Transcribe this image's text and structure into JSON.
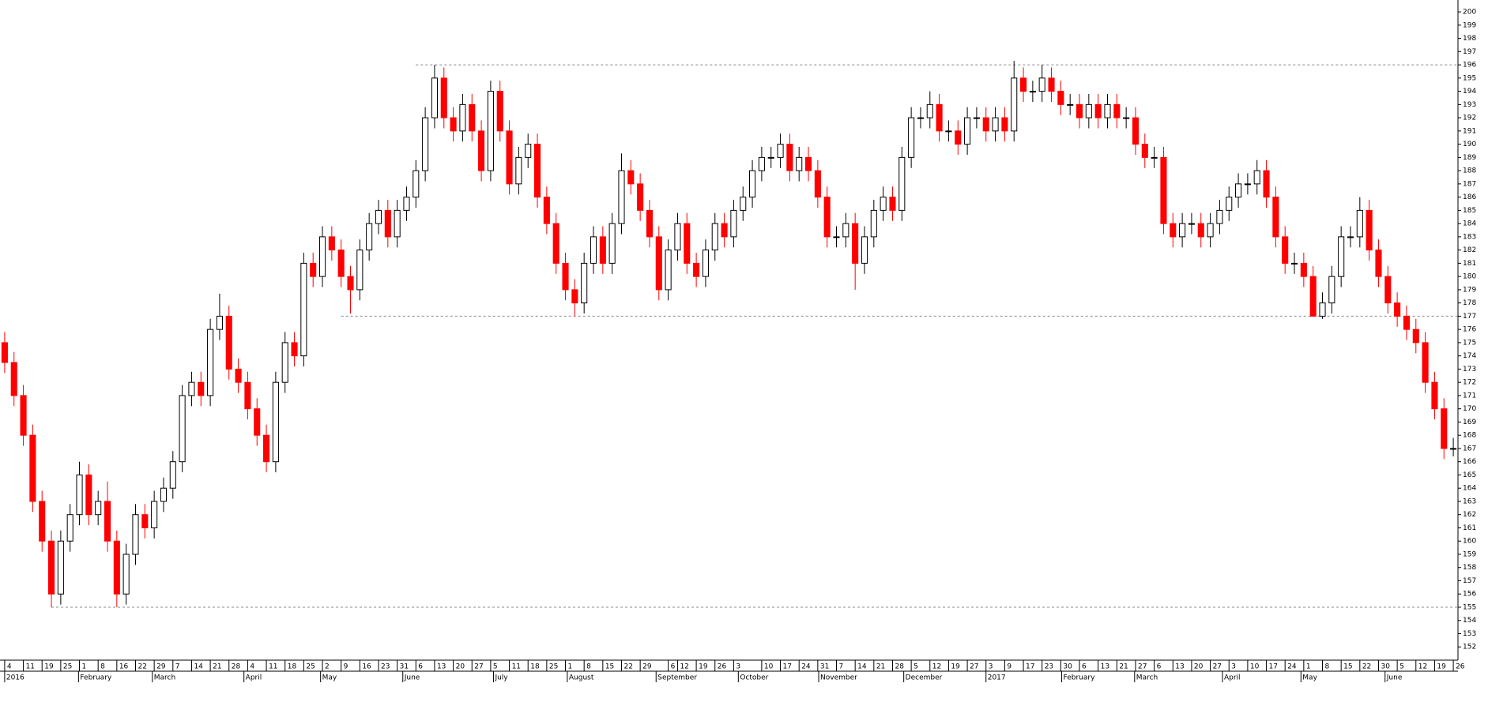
{
  "chart_data": {
    "type": "candlestick",
    "up_color": "#ffffff",
    "down_color": "#ff0000",
    "outline_color": "#000000",
    "ylim": [
      151,
      200.9
    ],
    "xlim": [
      -0.5,
      155.5
    ],
    "yticks": [
      152,
      153,
      154,
      155,
      156,
      157,
      158,
      159,
      160,
      161,
      162,
      163,
      164,
      165,
      166,
      167,
      168,
      169,
      170,
      171,
      172,
      173,
      174,
      175,
      176,
      177,
      178,
      179,
      180,
      181,
      182,
      183,
      184,
      185,
      186,
      187,
      188,
      189,
      190,
      191,
      192,
      193,
      194,
      195,
      196,
      197,
      198,
      199,
      200
    ],
    "open": [
      175,
      173.5,
      171,
      168,
      163,
      160,
      156,
      160,
      162,
      165,
      162,
      163,
      160,
      156,
      159,
      162,
      161,
      163,
      164,
      166,
      171,
      172,
      171,
      176,
      177,
      173,
      172,
      170,
      168,
      166,
      172,
      175,
      174,
      181,
      180,
      183,
      182,
      180,
      179,
      182,
      184,
      185,
      183,
      185,
      186,
      188,
      192,
      195,
      192,
      191,
      193,
      191,
      188,
      194,
      191,
      187,
      189,
      190,
      186,
      184,
      181,
      179,
      178,
      181,
      183,
      181,
      184,
      188,
      187,
      185,
      183,
      179,
      182,
      184,
      181,
      180,
      182,
      184,
      183,
      185,
      186,
      188,
      189,
      189,
      190,
      188,
      189,
      188,
      186,
      183,
      183,
      184,
      181,
      183,
      185,
      186,
      185,
      189,
      192,
      192,
      193,
      191,
      191,
      190,
      192,
      192,
      191,
      192,
      191,
      195,
      194,
      194,
      195,
      194,
      193,
      193,
      192,
      193,
      192,
      193,
      192,
      192,
      190,
      189,
      189,
      184,
      183,
      184,
      184,
      183,
      184,
      185,
      186,
      187,
      187,
      188,
      186,
      183,
      181,
      181,
      180,
      177,
      178,
      180,
      183,
      183,
      185,
      182,
      180,
      178,
      177,
      176,
      175,
      172,
      170,
      167
    ],
    "high": [
      175.8,
      174.3,
      171.8,
      168.8,
      163.8,
      160.8,
      160.8,
      162.8,
      166,
      165.8,
      163.8,
      164.5,
      160.8,
      159.8,
      162.8,
      162.8,
      163.8,
      164.8,
      166.8,
      171.8,
      172.8,
      172.8,
      176.8,
      178.7,
      177.8,
      173.8,
      172.8,
      170.8,
      168.8,
      172.8,
      175.8,
      175.8,
      181.8,
      181.8,
      183.8,
      183.8,
      182.8,
      180.8,
      182.8,
      184.8,
      185.8,
      185.8,
      185.8,
      186.8,
      188.8,
      192.8,
      196,
      195.8,
      192.8,
      193.8,
      193.8,
      191.8,
      194.8,
      194.8,
      191.8,
      189.8,
      190.8,
      190.8,
      186.8,
      184.8,
      181.8,
      179.8,
      181.8,
      183.8,
      183.8,
      184.8,
      189.3,
      188.8,
      187.8,
      185.8,
      183.8,
      182.8,
      184.8,
      184.8,
      181.8,
      182.8,
      184.8,
      184.8,
      185.8,
      186.8,
      188.8,
      189.8,
      189.8,
      190.8,
      190.8,
      189.8,
      189.8,
      188.8,
      186.8,
      183.8,
      184.8,
      184.8,
      183.8,
      185.8,
      186.8,
      186.8,
      189.8,
      192.8,
      192.8,
      194,
      193.8,
      191.8,
      191.8,
      192.8,
      192.8,
      192.8,
      192.8,
      192.8,
      196.3,
      195.8,
      194.8,
      196,
      195.8,
      194.8,
      193.8,
      193.8,
      193.8,
      193.8,
      193.8,
      193.8,
      192.8,
      192.8,
      190.8,
      189.8,
      189.8,
      184.8,
      184.8,
      184.8,
      184.8,
      184.8,
      185.8,
      186.8,
      187.8,
      187.8,
      188.8,
      188.8,
      186.8,
      183.8,
      181.8,
      181.8,
      180.8,
      178.8,
      180.8,
      183.8,
      183.8,
      186,
      185.8,
      182.8,
      180.8,
      178.8,
      177.8,
      176.8,
      175.8,
      172.8,
      170.8,
      167.8
    ],
    "low": [
      172.7,
      170.2,
      167.2,
      162.2,
      159.2,
      155,
      155.2,
      159.2,
      161.2,
      161.2,
      161.2,
      159.2,
      155,
      155.2,
      158.2,
      160.2,
      160.2,
      162.2,
      163.2,
      165.2,
      170.2,
      170.2,
      170.2,
      175.2,
      172.2,
      171.2,
      169.2,
      167.2,
      165.2,
      165.2,
      171.2,
      173.2,
      173.2,
      179.2,
      179.2,
      181.2,
      179.2,
      177.2,
      178.2,
      181.2,
      183.2,
      182.2,
      182.2,
      184.2,
      185.2,
      187.2,
      191.2,
      191.2,
      190.2,
      190.2,
      190.2,
      187.2,
      187.2,
      190.2,
      186.2,
      186.2,
      188.2,
      185.2,
      183.2,
      180.2,
      178.2,
      177,
      177.2,
      180.2,
      180.2,
      180.2,
      183.2,
      186.2,
      184.2,
      182.2,
      178.2,
      178.2,
      181.2,
      180.2,
      179.2,
      179.2,
      181.2,
      182.2,
      182.2,
      184.2,
      185.2,
      187.2,
      188.2,
      188.2,
      187.2,
      187.2,
      187.2,
      185.2,
      182.2,
      182.2,
      182.2,
      179,
      180.2,
      182.2,
      184.2,
      184.2,
      184.2,
      188.2,
      191.2,
      191.2,
      190.2,
      190.2,
      189.2,
      189.2,
      191.2,
      190.2,
      190.2,
      190.2,
      190.2,
      193.2,
      193.2,
      193.2,
      193.2,
      192.2,
      192.2,
      191.2,
      191.2,
      191.2,
      191.2,
      191.2,
      191.2,
      189.2,
      188.2,
      188.2,
      183.2,
      182.2,
      182.2,
      183.2,
      182.2,
      182.2,
      183.2,
      184.2,
      185.2,
      186.2,
      186.2,
      185.2,
      182.2,
      180.2,
      180.2,
      179.2,
      177,
      176.8,
      177.2,
      179.2,
      182.2,
      182.2,
      181.2,
      179.2,
      177.2,
      176.2,
      175.2,
      174.2,
      171.2,
      169.2,
      166.2,
      166.4
    ],
    "close": [
      173.5,
      171,
      168,
      163,
      160,
      156,
      160,
      162,
      165,
      162,
      163,
      160,
      156,
      159,
      162,
      161,
      163,
      164,
      166,
      171,
      172,
      171,
      176,
      177,
      173,
      172,
      170,
      168,
      166,
      172,
      175,
      174,
      181,
      180,
      183,
      182,
      180,
      179,
      182,
      184,
      185,
      183,
      185,
      186,
      188,
      192,
      195,
      192,
      191,
      193,
      191,
      188,
      194,
      191,
      187,
      189,
      190,
      186,
      184,
      181,
      179,
      178,
      181,
      183,
      181,
      184,
      188,
      187,
      185,
      183,
      179,
      182,
      184,
      181,
      180,
      182,
      184,
      183,
      185,
      186,
      188,
      189,
      189,
      190,
      188,
      189,
      188,
      186,
      183,
      183,
      184,
      181,
      183,
      185,
      186,
      185,
      189,
      192,
      192,
      193,
      191,
      191,
      190,
      192,
      192,
      191,
      192,
      191,
      195,
      194,
      194,
      195,
      194,
      193,
      193,
      192,
      193,
      192,
      193,
      192,
      192,
      190,
      189,
      189,
      184,
      183,
      184,
      184,
      183,
      184,
      185,
      186,
      187,
      187,
      188,
      186,
      183,
      181,
      181,
      180,
      177,
      178,
      180,
      183,
      183,
      185,
      182,
      180,
      178,
      177,
      176,
      175,
      172,
      170,
      167,
      167
    ],
    "hlines": [
      {
        "value": 196,
        "start": 44
      },
      {
        "value": 177,
        "start": 36
      },
      {
        "value": 155,
        "start": 5
      }
    ],
    "xticks": [
      {
        "value": 0,
        "label": "4"
      },
      {
        "value": 2,
        "label": "11"
      },
      {
        "value": 4,
        "label": "19"
      },
      {
        "value": 6,
        "label": "25"
      },
      {
        "value": 8,
        "label": "1"
      },
      {
        "value": 10,
        "label": "8"
      },
      {
        "value": 12,
        "label": "16"
      },
      {
        "value": 14,
        "label": "22"
      },
      {
        "value": 16,
        "label": "29"
      },
      {
        "value": 18,
        "label": "7"
      },
      {
        "value": 20,
        "label": "14"
      },
      {
        "value": 22,
        "label": "21"
      },
      {
        "value": 24,
        "label": "28"
      },
      {
        "value": 26,
        "label": "4"
      },
      {
        "value": 28,
        "label": "11"
      },
      {
        "value": 30,
        "label": "18"
      },
      {
        "value": 32,
        "label": "25"
      },
      {
        "value": 34,
        "label": "2"
      },
      {
        "value": 36,
        "label": "9"
      },
      {
        "value": 38,
        "label": "16"
      },
      {
        "value": 40,
        "label": "23"
      },
      {
        "value": 42,
        "label": "31"
      },
      {
        "value": 44,
        "label": "6"
      },
      {
        "value": 46,
        "label": "13"
      },
      {
        "value": 48,
        "label": "20"
      },
      {
        "value": 50,
        "label": "27"
      },
      {
        "value": 52,
        "label": "5"
      },
      {
        "value": 54,
        "label": "11"
      },
      {
        "value": 56,
        "label": "18"
      },
      {
        "value": 58,
        "label": "25"
      },
      {
        "value": 60,
        "label": "1"
      },
      {
        "value": 62,
        "label": "8"
      },
      {
        "value": 64,
        "label": "15"
      },
      {
        "value": 66,
        "label": "22"
      },
      {
        "value": 68,
        "label": "29"
      },
      {
        "value": 71,
        "label": "6"
      },
      {
        "value": 72,
        "label": "12"
      },
      {
        "value": 74,
        "label": "19"
      },
      {
        "value": 76,
        "label": "26"
      },
      {
        "value": 78,
        "label": "3"
      },
      {
        "value": 81,
        "label": "10"
      },
      {
        "value": 83,
        "label": "17"
      },
      {
        "value": 85,
        "label": "24"
      },
      {
        "value": 87,
        "label": "31"
      },
      {
        "value": 89,
        "label": "7"
      },
      {
        "value": 91,
        "label": "14"
      },
      {
        "value": 93,
        "label": "21"
      },
      {
        "value": 95,
        "label": "28"
      },
      {
        "value": 97,
        "label": "5"
      },
      {
        "value": 99,
        "label": "12"
      },
      {
        "value": 101,
        "label": "19"
      },
      {
        "value": 103,
        "label": "27"
      },
      {
        "value": 105,
        "label": "3"
      },
      {
        "value": 107,
        "label": "9"
      },
      {
        "value": 109,
        "label": "17"
      },
      {
        "value": 111,
        "label": "23"
      },
      {
        "value": 113,
        "label": "30"
      },
      {
        "value": 115,
        "label": "6"
      },
      {
        "value": 117,
        "label": "13"
      },
      {
        "value": 119,
        "label": "21"
      },
      {
        "value": 121,
        "label": "27"
      },
      {
        "value": 123,
        "label": "6"
      },
      {
        "value": 125,
        "label": "13"
      },
      {
        "value": 127,
        "label": "20"
      },
      {
        "value": 129,
        "label": "27"
      },
      {
        "value": 131,
        "label": "3"
      },
      {
        "value": 133,
        "label": "10"
      },
      {
        "value": 135,
        "label": "17"
      },
      {
        "value": 137,
        "label": "24"
      },
      {
        "value": 139,
        "label": "1"
      },
      {
        "value": 141,
        "label": "8"
      },
      {
        "value": 143,
        "label": "15"
      },
      {
        "value": 145,
        "label": "22"
      },
      {
        "value": 147,
        "label": "30"
      },
      {
        "value": 149,
        "label": "5"
      },
      {
        "value": 151,
        "label": "12"
      },
      {
        "value": 153,
        "label": "19"
      },
      {
        "value": 155,
        "label": "26"
      }
    ],
    "xperiods": [
      {
        "value": 0,
        "label": "2016"
      },
      {
        "value": 7.9,
        "label": "February"
      },
      {
        "value": 15.8,
        "label": "March"
      },
      {
        "value": 25.6,
        "label": "April"
      },
      {
        "value": 33.8,
        "label": "May"
      },
      {
        "value": 42.6,
        "label": "June"
      },
      {
        "value": 52.3,
        "label": "July"
      },
      {
        "value": 60.2,
        "label": "August"
      },
      {
        "value": 69.7,
        "label": "September"
      },
      {
        "value": 78.5,
        "label": "October"
      },
      {
        "value": 87.1,
        "label": "November"
      },
      {
        "value": 96.2,
        "label": "December"
      },
      {
        "value": 105,
        "label": "2017"
      },
      {
        "value": 113.1,
        "label": "February"
      },
      {
        "value": 120.9,
        "label": "March"
      },
      {
        "value": 130.3,
        "label": "April"
      },
      {
        "value": 138.7,
        "label": "May"
      },
      {
        "value": 147.7,
        "label": "June"
      }
    ]
  }
}
